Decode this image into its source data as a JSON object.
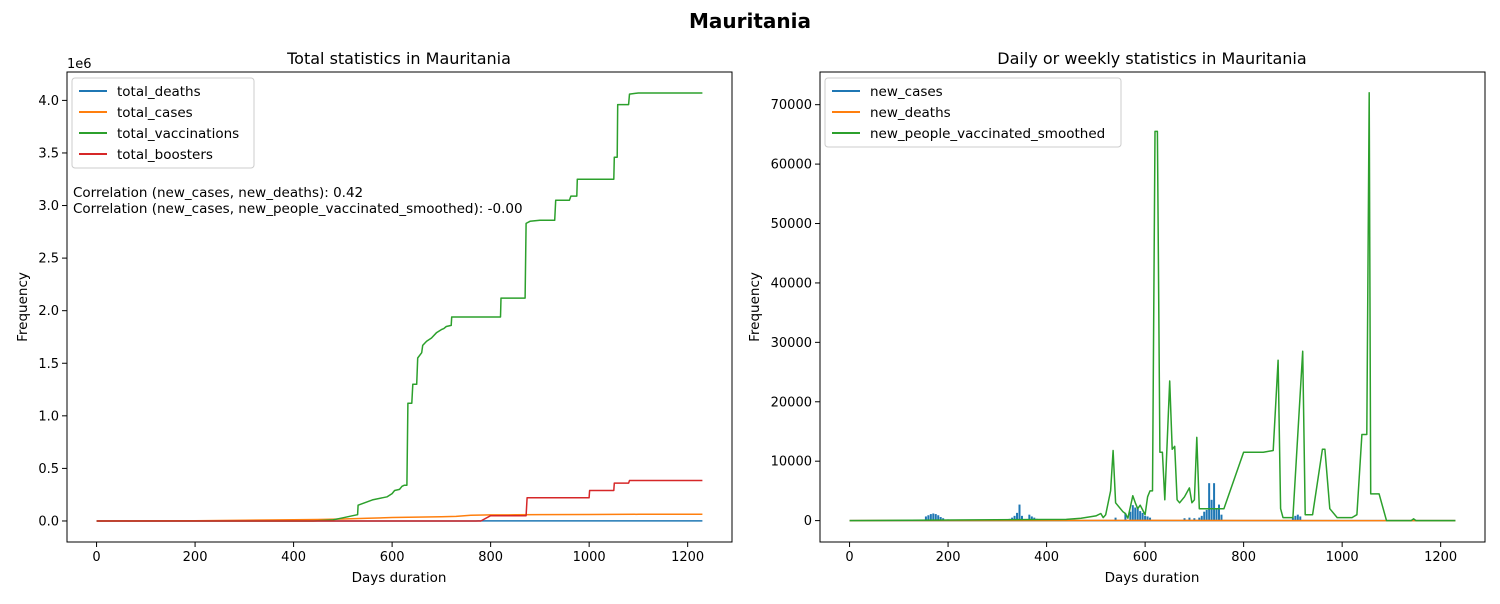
{
  "figure": {
    "title": "Mauritania"
  },
  "colors": {
    "blue": "#1f77b4",
    "orange": "#ff7f0e",
    "green": "#2ca02c",
    "red": "#d62728"
  },
  "chart_data": [
    {
      "type": "line",
      "title": "Total statistics in Mauritania",
      "xlabel": "Days duration",
      "ylabel": "Frequency",
      "offset_label": "1e6",
      "xlim": [
        -60,
        1290
      ],
      "ylim": [
        -200000,
        4270000
      ],
      "xticks": [
        0,
        200,
        400,
        600,
        800,
        1000,
        1200
      ],
      "yticks": [
        0,
        500000,
        1000000,
        1500000,
        2000000,
        2500000,
        3000000,
        3500000,
        4000000
      ],
      "ytick_labels": [
        "0.0",
        "0.5",
        "1.0",
        "1.5",
        "2.0",
        "2.5",
        "3.0",
        "3.5",
        "4.0"
      ],
      "legend_position": "upper-left",
      "annotations": [
        "Correlation (new_cases, new_deaths): 0.42",
        "Correlation (new_cases, new_people_vaccinated_smoothed): -0.00"
      ],
      "series": [
        {
          "name": "total_deaths",
          "color": "#1f77b4",
          "x": [
            0,
            300,
            500,
            770,
            775,
            1230
          ],
          "y": [
            0,
            0,
            0,
            0,
            1000,
            1000
          ]
        },
        {
          "name": "total_cases",
          "color": "#ff7f0e",
          "x": [
            0,
            100,
            200,
            300,
            350,
            450,
            500,
            550,
            600,
            700,
            730,
            760,
            800,
            850,
            900,
            1000,
            1100,
            1230
          ],
          "y": [
            0,
            500,
            2000,
            6000,
            9000,
            14000,
            19000,
            25000,
            33000,
            40000,
            43000,
            55000,
            58000,
            59000,
            61000,
            62000,
            63000,
            63500
          ]
        },
        {
          "name": "total_vaccinations",
          "color": "#2ca02c",
          "x": [
            0,
            440,
            480,
            500,
            520,
            530,
            531,
            560,
            580,
            590,
            600,
            605,
            615,
            620,
            625,
            630,
            632,
            640,
            642,
            650,
            652,
            660,
            662,
            670,
            680,
            690,
            700,
            705,
            710,
            720,
            721,
            820,
            821,
            870,
            872,
            880,
            900,
            901,
            930,
            932,
            960,
            963,
            975,
            976,
            1050,
            1051,
            1057,
            1058,
            1080,
            1082,
            1100,
            1230
          ],
          "y": [
            0,
            0,
            10000,
            30000,
            50000,
            60000,
            150000,
            200000,
            220000,
            230000,
            260000,
            290000,
            300000,
            330000,
            340000,
            340000,
            1120000,
            1120000,
            1300000,
            1300000,
            1550000,
            1600000,
            1670000,
            1710000,
            1740000,
            1790000,
            1820000,
            1830000,
            1850000,
            1860000,
            1940000,
            1940000,
            2120000,
            2120000,
            2830000,
            2850000,
            2860000,
            2860000,
            2860000,
            3050000,
            3050000,
            3090000,
            3090000,
            3250000,
            3250000,
            3460000,
            3460000,
            3960000,
            3960000,
            4060000,
            4070000,
            4070000
          ]
        },
        {
          "name": "total_boosters",
          "color": "#d62728",
          "x": [
            0,
            780,
            800,
            872,
            874,
            960,
            1000,
            1001,
            1050,
            1051,
            1080,
            1082,
            1230
          ],
          "y": [
            0,
            0,
            50000,
            50000,
            220000,
            220000,
            220000,
            290000,
            290000,
            360000,
            360000,
            385000,
            385000
          ]
        }
      ]
    },
    {
      "type": "line",
      "title": "Daily or weekly statistics in Mauritania",
      "xlabel": "Days duration",
      "ylabel": "Frequency",
      "xlim": [
        -60,
        1290
      ],
      "ylim": [
        -3600,
        75500
      ],
      "xticks": [
        0,
        200,
        400,
        600,
        800,
        1000,
        1200
      ],
      "yticks": [
        0,
        10000,
        20000,
        30000,
        40000,
        50000,
        60000,
        70000
      ],
      "legend_position": "upper-left",
      "series": [
        {
          "name": "new_cases",
          "color": "#1f77b4",
          "spikes": [
            [
              155,
              700
            ],
            [
              160,
              900
            ],
            [
              165,
              1100
            ],
            [
              170,
              1200
            ],
            [
              175,
              1100
            ],
            [
              180,
              900
            ],
            [
              185,
              600
            ],
            [
              190,
              400
            ],
            [
              200,
              200
            ],
            [
              210,
              100
            ],
            [
              325,
              300
            ],
            [
              330,
              500
            ],
            [
              335,
              800
            ],
            [
              340,
              1300
            ],
            [
              345,
              2700
            ],
            [
              350,
              800
            ],
            [
              365,
              1000
            ],
            [
              370,
              700
            ],
            [
              375,
              500
            ],
            [
              380,
              300
            ],
            [
              390,
              200
            ],
            [
              540,
              500
            ],
            [
              560,
              1200
            ],
            [
              570,
              1500
            ],
            [
              575,
              2600
            ],
            [
              580,
              2200
            ],
            [
              585,
              2000
            ],
            [
              590,
              1600
            ],
            [
              595,
              1300
            ],
            [
              600,
              800
            ],
            [
              605,
              700
            ],
            [
              610,
              500
            ],
            [
              680,
              400
            ],
            [
              690,
              500
            ],
            [
              700,
              400
            ],
            [
              710,
              500
            ],
            [
              715,
              800
            ],
            [
              720,
              1500
            ],
            [
              725,
              1800
            ],
            [
              730,
              6300
            ],
            [
              735,
              3500
            ],
            [
              740,
              6300
            ],
            [
              745,
              2000
            ],
            [
              750,
              2700
            ],
            [
              755,
              1000
            ],
            [
              900,
              500
            ],
            [
              905,
              800
            ],
            [
              910,
              1000
            ],
            [
              915,
              700
            ]
          ]
        },
        {
          "name": "new_deaths",
          "color": "#ff7f0e",
          "x": [
            0,
            200,
            400,
            600,
            800,
            1000,
            1230
          ],
          "y": [
            0,
            10,
            20,
            30,
            20,
            5,
            0
          ]
        },
        {
          "name": "new_people_vaccinated_smoothed",
          "color": "#2ca02c",
          "x": [
            0,
            440,
            470,
            500,
            510,
            515,
            520,
            530,
            535,
            540,
            555,
            560,
            565,
            575,
            580,
            585,
            590,
            600,
            605,
            610,
            615,
            620,
            625,
            630,
            635,
            640,
            650,
            655,
            660,
            665,
            670,
            680,
            690,
            695,
            700,
            705,
            710,
            720,
            725,
            730,
            735,
            740,
            750,
            760,
            800,
            820,
            840,
            860,
            870,
            875,
            880,
            900,
            920,
            925,
            930,
            935,
            940,
            960,
            965,
            975,
            990,
            1000,
            1020,
            1030,
            1040,
            1050,
            1055,
            1058,
            1063,
            1075,
            1090,
            1140,
            1145,
            1150,
            1230
          ],
          "y": [
            0,
            200,
            400,
            800,
            1200,
            500,
            1000,
            5000,
            11800,
            3000,
            1500,
            1200,
            400,
            4200,
            3000,
            2000,
            2600,
            1000,
            4000,
            5000,
            5000,
            65500,
            65500,
            11500,
            11500,
            3500,
            23500,
            12000,
            12500,
            3500,
            3000,
            4000,
            5500,
            3000,
            3500,
            14000,
            2000,
            2000,
            2000,
            2000,
            2000,
            2000,
            2000,
            2000,
            11500,
            11500,
            11500,
            11800,
            27000,
            2000,
            500,
            500,
            28500,
            1000,
            1000,
            1000,
            1000,
            12000,
            12000,
            2000,
            500,
            500,
            500,
            1000,
            14500,
            14500,
            72000,
            4500,
            4500,
            4500,
            0,
            0,
            300,
            0,
            0
          ]
        }
      ]
    }
  ]
}
